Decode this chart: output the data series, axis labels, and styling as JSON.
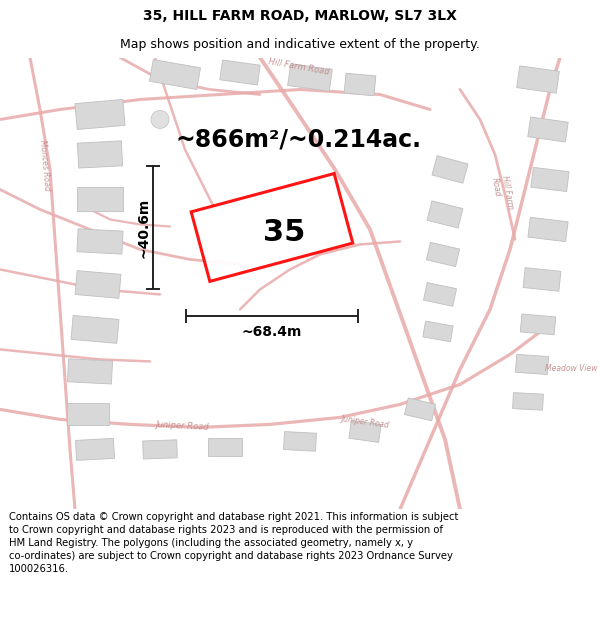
{
  "title_line1": "35, HILL FARM ROAD, MARLOW, SL7 3LX",
  "title_line2": "Map shows position and indicative extent of the property.",
  "area_text": "~866m²/~0.214ac.",
  "label_35": "35",
  "dim_width": "~68.4m",
  "dim_height": "~40.6m",
  "copyright_text": "Contains OS data © Crown copyright and database right 2021. This information is subject to Crown copyright and database rights 2023 and is reproduced with the permission of HM Land Registry. The polygons (including the associated geometry, namely x, y co-ordinates) are subject to Crown copyright and database rights 2023 Ordnance Survey 100026316.",
  "bg_color": "#ffffff",
  "map_bg": "#f8f4f4",
  "road_color": "#e8aaaa",
  "building_fill": "#d8d8d8",
  "building_edge": "#c0c0c0",
  "plot_color": "#ff0000",
  "dim_color": "#222222",
  "title_fontsize": 10,
  "subtitle_fontsize": 9,
  "area_fontsize": 17,
  "label_fontsize": 22,
  "dim_fontsize": 10,
  "copyright_fontsize": 7.2,
  "road_label_fontsize": 6,
  "road_lw": 2.5,
  "road_alpha": 0.85
}
